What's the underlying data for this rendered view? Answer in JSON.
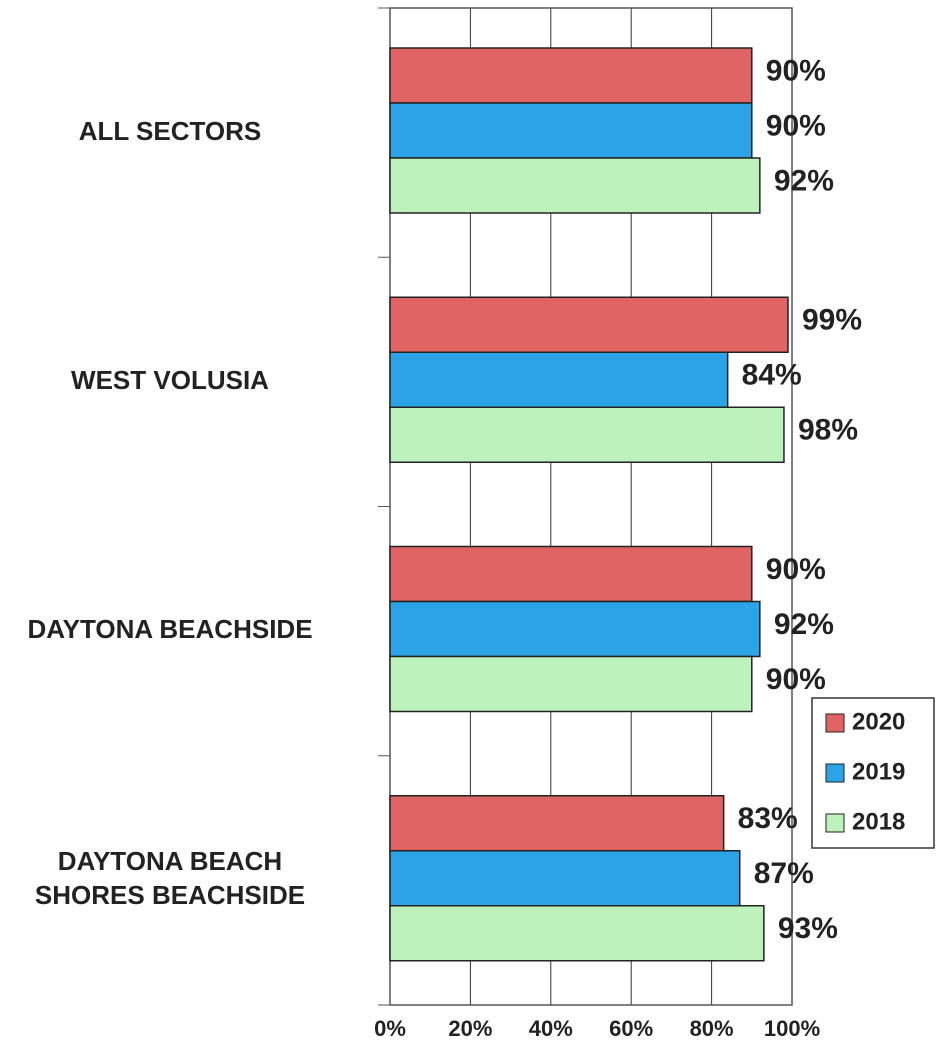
{
  "chart_data": {
    "type": "hbar",
    "categories": [
      "ALL SECTORS",
      "WEST VOLUSIA",
      "DAYTONA BEACHSIDE",
      "DAYTONA BEACH\nSHORES BEACHSIDE"
    ],
    "series": [
      {
        "name": "2020",
        "color": "#e06464",
        "values": [
          90,
          99,
          90,
          83
        ],
        "value_labels": [
          "90%",
          "99%",
          "90%",
          "83%"
        ]
      },
      {
        "name": "2019",
        "color": "#2ba3e6",
        "values": [
          90,
          84,
          92,
          87
        ],
        "value_labels": [
          "90%",
          "84%",
          "92%",
          "87%"
        ]
      },
      {
        "name": "2018",
        "color": "#bdf2bd",
        "values": [
          92,
          98,
          90,
          93
        ],
        "value_labels": [
          "92%",
          "98%",
          "90%",
          "93%"
        ]
      }
    ],
    "xlim": [
      0,
      100
    ],
    "xticks": [
      {
        "value": 0,
        "label": "0%"
      },
      {
        "value": 20,
        "label": "20%"
      },
      {
        "value": 40,
        "label": "40%"
      },
      {
        "value": 60,
        "label": "60%"
      },
      {
        "value": 80,
        "label": "80%"
      },
      {
        "value": 100,
        "label": "100%"
      }
    ],
    "grid": true,
    "legend": "right"
  }
}
